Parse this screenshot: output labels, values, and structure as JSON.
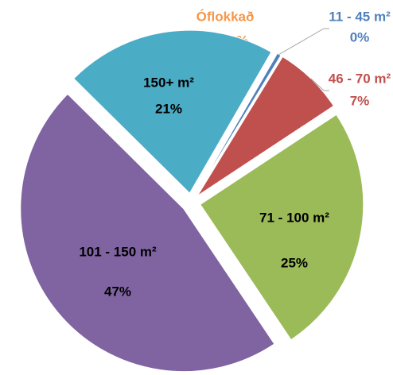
{
  "chart_data": {
    "type": "pie",
    "categories": [
      "Óflokkað",
      "11 - 45 m²",
      "46 - 70 m²",
      "71 - 100 m²",
      "101 - 150 m²",
      "150+ m²"
    ],
    "values": [
      0,
      0.4,
      7,
      25,
      47,
      21
    ],
    "value_labels": [
      "0%",
      "0%",
      "7%",
      "25%",
      "47%",
      "21%"
    ],
    "colors": [
      "#f79646",
      "#4f81bd",
      "#c0504d",
      "#9bbb59",
      "#8064a2",
      "#4bacc6"
    ]
  }
}
